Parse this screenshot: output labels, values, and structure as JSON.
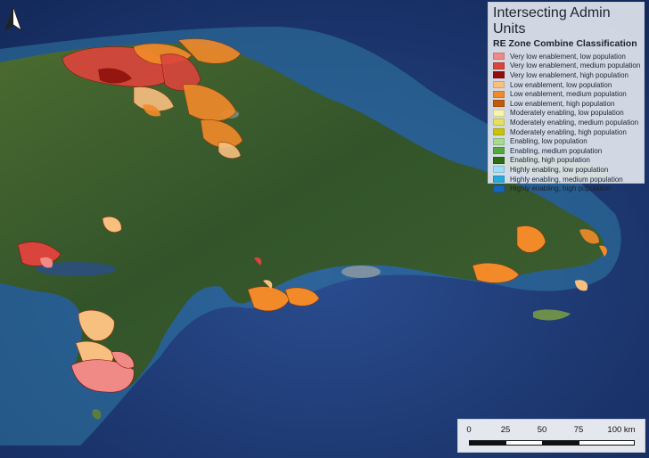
{
  "legend": {
    "title": "Intersecting Admin Units",
    "subtitle": "RE Zone Combine Classification",
    "items": [
      {
        "label": "Very low enablement, low population",
        "color": "#f08a86"
      },
      {
        "label": "Very low enablement, medium population",
        "color": "#d9453c"
      },
      {
        "label": "Very low enablement, high population",
        "color": "#8f0f0c"
      },
      {
        "label": "Low enablement, low population",
        "color": "#f7c081"
      },
      {
        "label": "Low enablement, medium population",
        "color": "#f28a2a"
      },
      {
        "label": "Low enablement, high population",
        "color": "#c15b0a"
      },
      {
        "label": "Moderately enabling, low population",
        "color": "#f7f4b0"
      },
      {
        "label": "Moderately enabling, medium population",
        "color": "#e4e25a"
      },
      {
        "label": "Moderately enabling, high population",
        "color": "#c9c20a"
      },
      {
        "label": "Enabling, low population",
        "color": "#a7d98f"
      },
      {
        "label": "Enabling, medium population",
        "color": "#57a83a"
      },
      {
        "label": "Enabling, high population",
        "color": "#2e6b14"
      },
      {
        "label": "Highly enabling, low population",
        "color": "#9fdcf5"
      },
      {
        "label": "Highly enabling, medium population",
        "color": "#2aa8e0"
      },
      {
        "label": "Highly enabling, high population",
        "color": "#1565c0"
      }
    ]
  },
  "scale_bar": {
    "ticks": [
      "0",
      "25",
      "50",
      "75",
      "100 km"
    ]
  },
  "north_arrow": {
    "icon": "north-arrow-icon"
  },
  "colors": {
    "ocean_deep": "#1e3a78",
    "ocean_shelf": "#3f8fb5",
    "land": "#3d5a2a"
  }
}
